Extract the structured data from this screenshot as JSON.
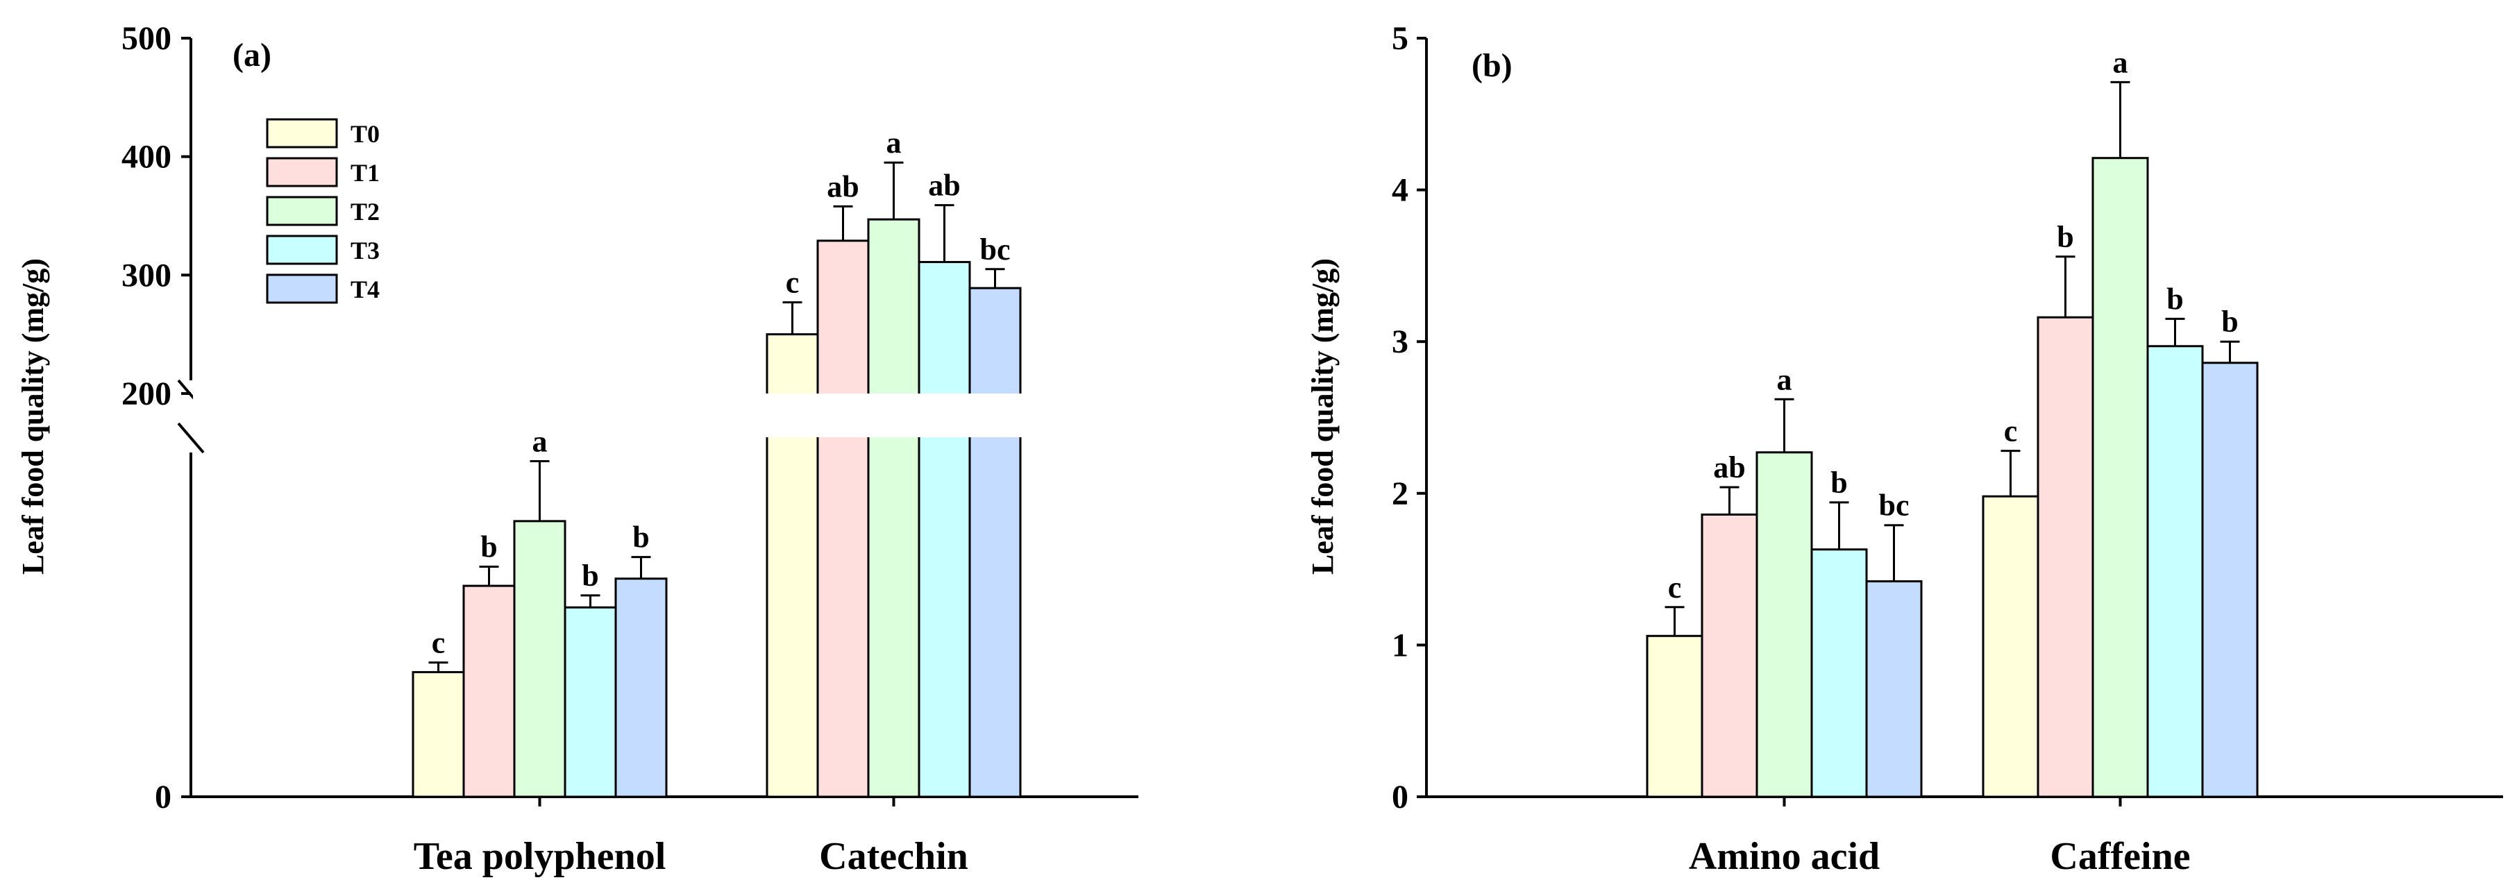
{
  "chart_data": [
    {
      "type": "bar",
      "panel_label": "(a)",
      "ylabel": "Leaf  food quality (mg/g)",
      "categories": [
        "Tea polyphenol",
        "Catechin"
      ],
      "axis_break": {
        "lower_range": [
          0,
          150
        ],
        "upper_range": [
          200,
          500
        ]
      },
      "ylim": [
        0,
        500
      ],
      "yticks": [
        0,
        200,
        300,
        400,
        500
      ],
      "legend": {
        "position": "top-left",
        "entries": [
          "T0",
          "T1",
          "T2",
          "T3",
          "T4"
        ]
      },
      "series": [
        {
          "name": "T0",
          "color": "#ffffdc",
          "values": [
            52,
            250
          ],
          "errors": [
            4,
            27
          ],
          "sig": [
            "c",
            "c"
          ]
        },
        {
          "name": "T1",
          "color": "#ffdede",
          "values": [
            88,
            329
          ],
          "errors": [
            8,
            29
          ],
          "sig": [
            "b",
            "ab"
          ]
        },
        {
          "name": "T2",
          "color": "#dcffdc",
          "values": [
            115,
            347
          ],
          "errors": [
            25,
            48
          ],
          "sig": [
            "a",
            "a"
          ]
        },
        {
          "name": "T3",
          "color": "#c8ffff",
          "values": [
            79,
            311
          ],
          "errors": [
            5,
            48
          ],
          "sig": [
            "b",
            "ab"
          ]
        },
        {
          "name": "T4",
          "color": "#c4dcff",
          "values": [
            91,
            289
          ],
          "errors": [
            9,
            16
          ],
          "sig": [
            "b",
            "bc"
          ]
        }
      ]
    },
    {
      "type": "bar",
      "panel_label": "(b)",
      "ylabel": "Leaf  food quality (mg/g)",
      "categories": [
        "Amino acid",
        "Caffeine"
      ],
      "ylim": [
        0,
        5
      ],
      "yticks": [
        0,
        1,
        2,
        3,
        4,
        5
      ],
      "series": [
        {
          "name": "T0",
          "color": "#ffffdc",
          "values": [
            1.06,
            1.98
          ],
          "errors": [
            0.19,
            0.3
          ],
          "sig": [
            "c",
            "c"
          ]
        },
        {
          "name": "T1",
          "color": "#ffdede",
          "values": [
            1.86,
            3.16
          ],
          "errors": [
            0.18,
            0.4
          ],
          "sig": [
            "ab",
            "b"
          ]
        },
        {
          "name": "T2",
          "color": "#dcffdc",
          "values": [
            2.27,
            4.21
          ],
          "errors": [
            0.35,
            0.5
          ],
          "sig": [
            "a",
            "a"
          ]
        },
        {
          "name": "T3",
          "color": "#c8ffff",
          "values": [
            1.63,
            2.97
          ],
          "errors": [
            0.31,
            0.18
          ],
          "sig": [
            "b",
            "b"
          ]
        },
        {
          "name": "T4",
          "color": "#c4dcff",
          "values": [
            1.42,
            2.86
          ],
          "errors": [
            0.37,
            0.14
          ],
          "sig": [
            "bc",
            "b"
          ]
        }
      ]
    }
  ]
}
